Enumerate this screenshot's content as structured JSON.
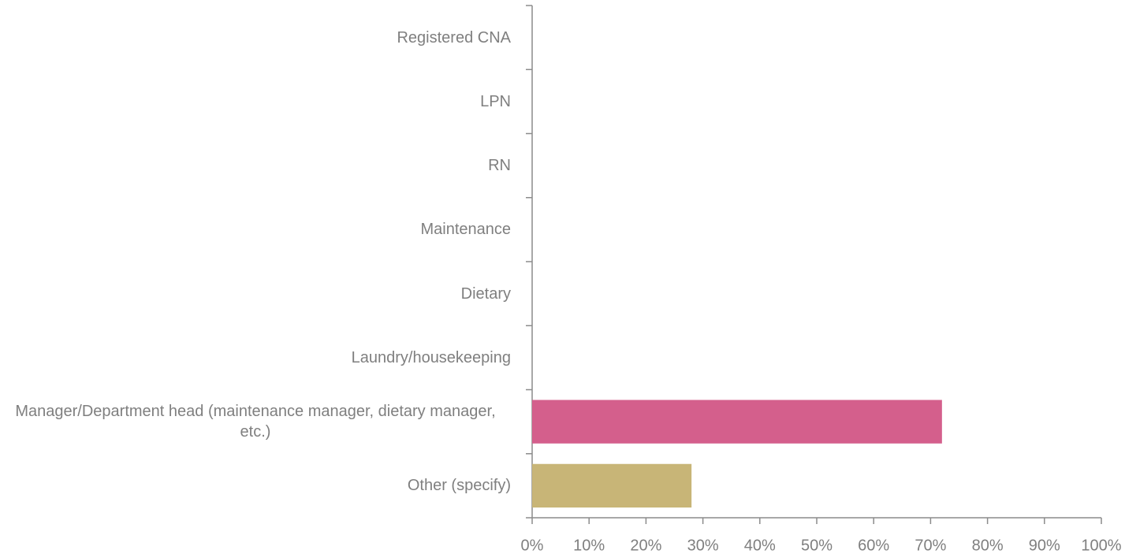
{
  "chart_data": {
    "type": "barh",
    "categories": [
      "Registered CNA",
      "LPN",
      "RN",
      "Maintenance",
      "Dietary",
      "Laundry/housekeeping",
      "Manager/Department head (maintenance manager, dietary manager, etc.)",
      "Other (specify)"
    ],
    "values": [
      0,
      0,
      0,
      0,
      0,
      0,
      72,
      28
    ],
    "colors": [
      null,
      null,
      null,
      null,
      null,
      null,
      "#d45f8c",
      "#c8b577"
    ],
    "xlim": [
      0,
      100
    ],
    "xticks": [
      {
        "value": 0,
        "label": "0%"
      },
      {
        "value": 10,
        "label": "10%"
      },
      {
        "value": 20,
        "label": "20%"
      },
      {
        "value": 30,
        "label": "30%"
      },
      {
        "value": 40,
        "label": "40%"
      },
      {
        "value": 50,
        "label": "50%"
      },
      {
        "value": 60,
        "label": "60%"
      },
      {
        "value": 70,
        "label": "70%"
      },
      {
        "value": 80,
        "label": "80%"
      },
      {
        "value": 90,
        "label": "90%"
      },
      {
        "value": 100,
        "label": "100%"
      }
    ],
    "grid": false
  }
}
